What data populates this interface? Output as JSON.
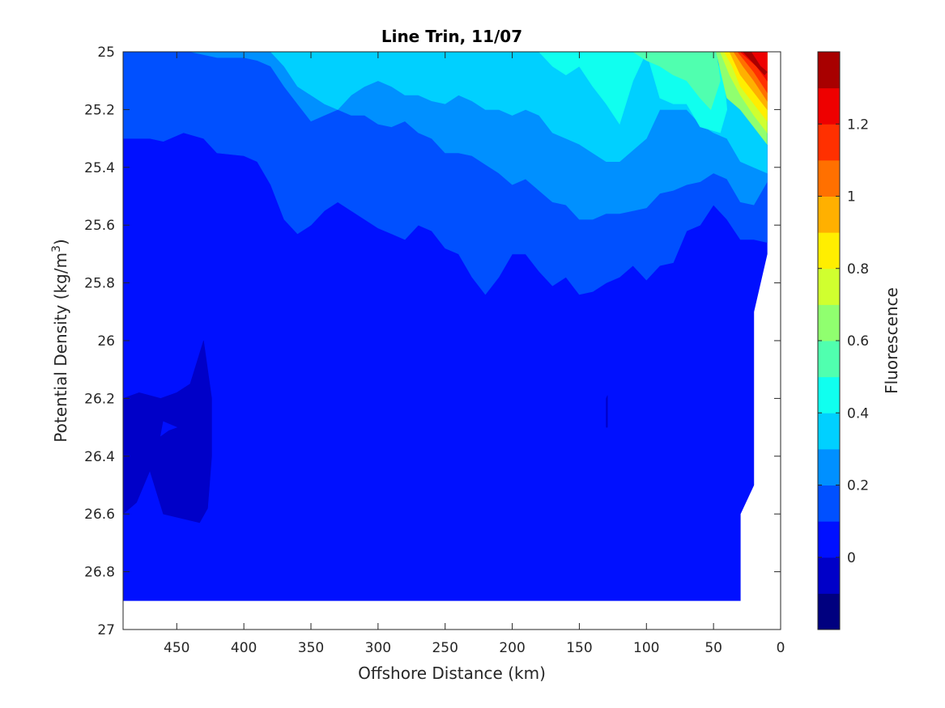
{
  "chart_data": {
    "type": "contour",
    "title": "Line Trin, 11/07",
    "xlabel": "Offshore Distance (km)",
    "ylabel_main": "Potential Density (kg/m",
    "ylabel_sup": "3",
    "ylabel_close": ")",
    "xlim": [
      490,
      0
    ],
    "ylim": [
      25,
      27
    ],
    "x_reversed": true,
    "y_reversed": true,
    "x_ticks": [
      "450",
      "400",
      "350",
      "300",
      "250",
      "200",
      "150",
      "100",
      "50",
      "0"
    ],
    "y_ticks": [
      "25",
      "25.2",
      "25.4",
      "25.6",
      "25.8",
      "26",
      "26.2",
      "26.4",
      "26.6",
      "26.8",
      "27"
    ],
    "colorbar": {
      "label": "Fluorescence",
      "range": [
        -0.2,
        1.4
      ],
      "levels": [
        -0.2,
        -0.1,
        0,
        0.1,
        0.2,
        0.3,
        0.4,
        0.5,
        0.6,
        0.7,
        0.8,
        0.9,
        1.0,
        1.1,
        1.2,
        1.3,
        1.4
      ],
      "colors": [
        "#00007f",
        "#0000c8",
        "#0010ff",
        "#0050ff",
        "#0090ff",
        "#00d0ff",
        "#10ffef",
        "#50ffaf",
        "#90ff6f",
        "#d0ff2f",
        "#ffee00",
        "#ffb000",
        "#ff7000",
        "#ff3000",
        "#ee0000",
        "#a80000"
      ],
      "tick_values": [
        0,
        0.2,
        0.4,
        0.6,
        0.8,
        1.0,
        1.2
      ],
      "tick_labels": [
        "0",
        "0.2",
        "0.4",
        "0.6",
        "0.8",
        "1",
        "1.2"
      ]
    },
    "regions": [
      {
        "level": 0.0,
        "color": "#0010ff",
        "points": [
          [
            490,
            25.0
          ],
          [
            10,
            25.0
          ],
          [
            10,
            25.4
          ],
          [
            10,
            25.7
          ],
          [
            20,
            25.9
          ],
          [
            20,
            26.5
          ],
          [
            30,
            26.6
          ],
          [
            30,
            26.9
          ],
          [
            490,
            26.9
          ]
        ]
      },
      {
        "level": -0.1,
        "color": "#0000c8",
        "points": [
          [
            490,
            26.2
          ],
          [
            478,
            26.18
          ],
          [
            462,
            26.2
          ],
          [
            450,
            26.18
          ],
          [
            440,
            26.15
          ],
          [
            430,
            26.0
          ],
          [
            424,
            26.2
          ],
          [
            424,
            26.4
          ],
          [
            427,
            26.58
          ],
          [
            433,
            26.63
          ],
          [
            460,
            26.6
          ],
          [
            470,
            26.45
          ],
          [
            480,
            26.56
          ],
          [
            490,
            26.6
          ]
        ]
      },
      {
        "level": 0.1,
        "color": "#0050ff",
        "points": [
          [
            490,
            25.0
          ],
          [
            10,
            25.0
          ],
          [
            10,
            25.5
          ],
          [
            10,
            25.66
          ],
          [
            20,
            25.65
          ],
          [
            30,
            25.65
          ],
          [
            40,
            25.58
          ],
          [
            50,
            25.53
          ],
          [
            60,
            25.6
          ],
          [
            70,
            25.62
          ],
          [
            80,
            25.73
          ],
          [
            90,
            25.74
          ],
          [
            100,
            25.79
          ],
          [
            110,
            25.74
          ],
          [
            120,
            25.78
          ],
          [
            130,
            25.8
          ],
          [
            140,
            25.83
          ],
          [
            150,
            25.84
          ],
          [
            160,
            25.78
          ],
          [
            170,
            25.81
          ],
          [
            180,
            25.76
          ],
          [
            190,
            25.7
          ],
          [
            200,
            25.7
          ],
          [
            210,
            25.78
          ],
          [
            220,
            25.84
          ],
          [
            230,
            25.78
          ],
          [
            240,
            25.7
          ],
          [
            250,
            25.68
          ],
          [
            260,
            25.62
          ],
          [
            270,
            25.6
          ],
          [
            280,
            25.65
          ],
          [
            290,
            25.63
          ],
          [
            300,
            25.61
          ],
          [
            310,
            25.58
          ],
          [
            320,
            25.55
          ],
          [
            330,
            25.52
          ],
          [
            340,
            25.55
          ],
          [
            350,
            25.6
          ],
          [
            360,
            25.63
          ],
          [
            370,
            25.58
          ],
          [
            380,
            25.46
          ],
          [
            390,
            25.38
          ],
          [
            400,
            25.36
          ],
          [
            420,
            25.35
          ],
          [
            430,
            25.3
          ],
          [
            445,
            25.28
          ],
          [
            460,
            25.31
          ],
          [
            470,
            25.3
          ],
          [
            490,
            25.3
          ]
        ]
      },
      {
        "level": 0.2,
        "color": "#0090ff",
        "points": [
          [
            440,
            25.0
          ],
          [
            10,
            25.0
          ],
          [
            10,
            25.45
          ],
          [
            20,
            25.53
          ],
          [
            30,
            25.52
          ],
          [
            40,
            25.44
          ],
          [
            50,
            25.42
          ],
          [
            60,
            25.45
          ],
          [
            70,
            25.46
          ],
          [
            80,
            25.48
          ],
          [
            90,
            25.49
          ],
          [
            100,
            25.54
          ],
          [
            110,
            25.55
          ],
          [
            120,
            25.56
          ],
          [
            130,
            25.56
          ],
          [
            140,
            25.58
          ],
          [
            150,
            25.58
          ],
          [
            160,
            25.53
          ],
          [
            170,
            25.52
          ],
          [
            180,
            25.48
          ],
          [
            190,
            25.44
          ],
          [
            200,
            25.46
          ],
          [
            210,
            25.42
          ],
          [
            220,
            25.39
          ],
          [
            230,
            25.36
          ],
          [
            240,
            25.35
          ],
          [
            250,
            25.35
          ],
          [
            260,
            25.3
          ],
          [
            270,
            25.28
          ],
          [
            280,
            25.24
          ],
          [
            290,
            25.26
          ],
          [
            300,
            25.25
          ],
          [
            310,
            25.22
          ],
          [
            320,
            25.22
          ],
          [
            330,
            25.2
          ],
          [
            340,
            25.22
          ],
          [
            350,
            25.24
          ],
          [
            360,
            25.18
          ],
          [
            370,
            25.12
          ],
          [
            380,
            25.05
          ],
          [
            390,
            25.03
          ],
          [
            400,
            25.02
          ],
          [
            420,
            25.02
          ]
        ]
      },
      {
        "level": 0.3,
        "color": "#00d0ff",
        "points": [
          [
            380,
            25.0
          ],
          [
            10,
            25.0
          ],
          [
            10,
            25.42
          ],
          [
            20,
            25.4
          ],
          [
            30,
            25.38
          ],
          [
            40,
            25.3
          ],
          [
            50,
            25.28
          ],
          [
            60,
            25.25
          ],
          [
            70,
            25.2
          ],
          [
            80,
            25.2
          ],
          [
            90,
            25.2
          ],
          [
            100,
            25.3
          ],
          [
            110,
            25.34
          ],
          [
            120,
            25.38
          ],
          [
            130,
            25.38
          ],
          [
            140,
            25.35
          ],
          [
            150,
            25.32
          ],
          [
            160,
            25.3
          ],
          [
            170,
            25.28
          ],
          [
            180,
            25.22
          ],
          [
            190,
            25.2
          ],
          [
            200,
            25.22
          ],
          [
            210,
            25.2
          ],
          [
            220,
            25.2
          ],
          [
            230,
            25.17
          ],
          [
            240,
            25.15
          ],
          [
            250,
            25.18
          ],
          [
            260,
            25.17
          ],
          [
            270,
            25.15
          ],
          [
            280,
            25.15
          ],
          [
            290,
            25.12
          ],
          [
            300,
            25.1
          ],
          [
            310,
            25.12
          ],
          [
            320,
            25.15
          ],
          [
            330,
            25.2
          ],
          [
            340,
            25.18
          ],
          [
            350,
            25.15
          ],
          [
            360,
            25.12
          ],
          [
            370,
            25.05
          ]
        ]
      },
      {
        "level": 0.4,
        "color": "#10ffef",
        "points": [
          [
            180,
            25.0
          ],
          [
            50,
            25.0
          ],
          [
            42,
            25.1
          ],
          [
            40,
            25.2
          ],
          [
            45,
            25.28
          ],
          [
            60,
            25.26
          ],
          [
            70,
            25.18
          ],
          [
            80,
            25.18
          ],
          [
            90,
            25.16
          ],
          [
            100,
            25.0
          ],
          [
            110,
            25.1
          ],
          [
            120,
            25.25
          ],
          [
            130,
            25.18
          ],
          [
            140,
            25.12
          ],
          [
            150,
            25.05
          ],
          [
            160,
            25.08
          ],
          [
            170,
            25.05
          ]
        ]
      },
      {
        "level": 0.5,
        "color": "#50ffaf",
        "points": [
          [
            110,
            25.0
          ],
          [
            48,
            25.0
          ],
          [
            45,
            25.1
          ],
          [
            52,
            25.2
          ],
          [
            60,
            25.16
          ],
          [
            70,
            25.1
          ],
          [
            80,
            25.08
          ],
          [
            90,
            25.05
          ],
          [
            100,
            25.03
          ]
        ]
      },
      {
        "level": 0.6,
        "color": "#90ff6f",
        "points": [
          [
            48,
            25.0
          ],
          [
            10,
            25.0
          ],
          [
            10,
            25.32
          ],
          [
            20,
            25.26
          ],
          [
            30,
            25.2
          ],
          [
            40,
            25.16
          ],
          [
            44,
            25.08
          ]
        ]
      },
      {
        "level": 0.7,
        "color": "#d0ff2f",
        "points": [
          [
            45,
            25.0
          ],
          [
            10,
            25.0
          ],
          [
            10,
            25.28
          ],
          [
            20,
            25.22
          ],
          [
            30,
            25.15
          ],
          [
            38,
            25.08
          ]
        ]
      },
      {
        "level": 0.8,
        "color": "#ffee00",
        "points": [
          [
            42,
            25.0
          ],
          [
            10,
            25.0
          ],
          [
            10,
            25.24
          ],
          [
            20,
            25.18
          ],
          [
            30,
            25.12
          ],
          [
            36,
            25.05
          ]
        ]
      },
      {
        "level": 0.9,
        "color": "#ffb000",
        "points": [
          [
            38,
            25.0
          ],
          [
            10,
            25.0
          ],
          [
            10,
            25.2
          ],
          [
            20,
            25.14
          ],
          [
            30,
            25.08
          ]
        ]
      },
      {
        "level": 1.0,
        "color": "#ff7000",
        "points": [
          [
            35,
            25.0
          ],
          [
            10,
            25.0
          ],
          [
            10,
            25.17
          ],
          [
            20,
            25.1
          ],
          [
            28,
            25.05
          ]
        ]
      },
      {
        "level": 1.1,
        "color": "#ff3000",
        "points": [
          [
            32,
            25.0
          ],
          [
            10,
            25.0
          ],
          [
            10,
            25.14
          ],
          [
            20,
            25.07
          ]
        ]
      },
      {
        "level": 1.2,
        "color": "#ee0000",
        "points": [
          [
            30,
            25.0
          ],
          [
            10,
            25.0
          ],
          [
            10,
            25.1
          ],
          [
            18,
            25.05
          ]
        ]
      },
      {
        "level": 1.3,
        "color": "#a80000",
        "points": [
          [
            28,
            25.0
          ],
          [
            22,
            25.0
          ],
          [
            15,
            25.05
          ],
          [
            10,
            25.07
          ],
          [
            12,
            25.08
          ],
          [
            18,
            25.05
          ]
        ]
      }
    ],
    "features": [
      {
        "level": -0.1,
        "color": "#0000c8",
        "points": [
          [
            129,
            26.19
          ],
          [
            130,
            26.2
          ],
          [
            130,
            26.3
          ],
          [
            129,
            26.3
          ]
        ]
      },
      {
        "level": 0.0,
        "color": "#0010ff",
        "points": [
          [
            460,
            26.28
          ],
          [
            450,
            26.3
          ],
          [
            456,
            26.31
          ],
          [
            462,
            26.33
          ]
        ]
      }
    ]
  }
}
